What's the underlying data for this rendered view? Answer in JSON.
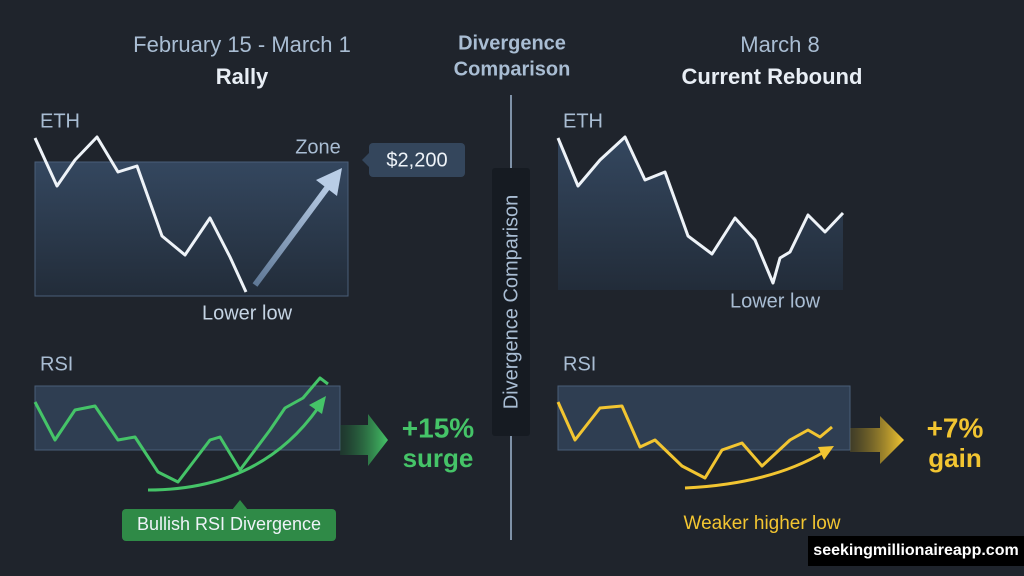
{
  "left": {
    "date": "February 15 - March 1",
    "title": "Rally",
    "eth_label": "ETH",
    "zone": "Zone",
    "price": "$2,200",
    "low_note": "Lower low",
    "rsi_label": "RSI",
    "result": [
      "+15%",
      "surge"
    ],
    "divergence": "Bullish RSI Divergence"
  },
  "center": {
    "title": [
      "Divergence",
      "Comparison"
    ],
    "vertical": "Divergence Comparison"
  },
  "right": {
    "date": "March 8",
    "title": "Current Rebound",
    "eth_label": "ETH",
    "low_note": "Lower low",
    "rsi_label": "RSI",
    "result": [
      "+7%",
      "gain"
    ],
    "note": "Weaker higher low"
  },
  "watermark": "seekingmillionaireapp.com"
}
